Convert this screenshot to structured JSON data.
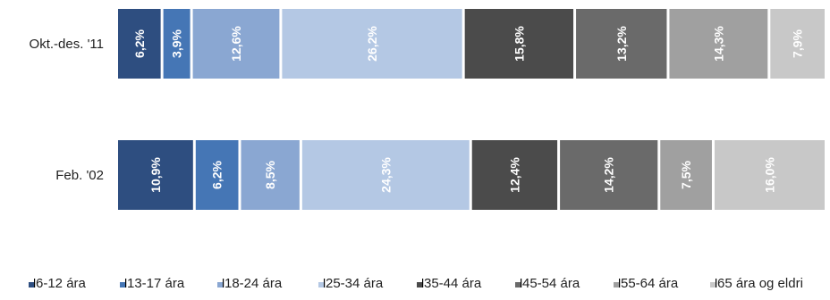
{
  "chart_data": {
    "type": "bar",
    "orientation": "horizontal",
    "stacked": true,
    "normalized": true,
    "categories": [
      "Okt.-des. '11",
      "Feb. '02"
    ],
    "series": [
      {
        "name": "6-12 ára",
        "values": [
          6.2,
          10.9
        ],
        "labels": [
          "6,2%",
          "10,9%"
        ],
        "color": "#2e4e80"
      },
      {
        "name": "13-17 ára",
        "values": [
          3.9,
          6.2
        ],
        "labels": [
          "3,9%",
          "6,2%"
        ],
        "color": "#4576b5"
      },
      {
        "name": "18-24 ára",
        "values": [
          12.6,
          8.5
        ],
        "labels": [
          "12,6%",
          "8,5%"
        ],
        "color": "#8aa7d2"
      },
      {
        "name": "25-34 ára",
        "values": [
          26.2,
          24.3
        ],
        "labels": [
          "26,2%",
          "24,3%"
        ],
        "color": "#b4c8e4"
      },
      {
        "name": "35-44 ára",
        "values": [
          15.8,
          12.4
        ],
        "labels": [
          "15,8%",
          "12,4%"
        ],
        "color": "#4b4b4b"
      },
      {
        "name": "45-54 ára",
        "values": [
          13.2,
          14.2
        ],
        "labels": [
          "13,2%",
          "14,2%"
        ],
        "color": "#6a6a6a"
      },
      {
        "name": "55-64 ára",
        "values": [
          14.3,
          7.5
        ],
        "labels": [
          "14,3%",
          "7,5%"
        ],
        "color": "#a0a0a0"
      },
      {
        "name": "65 ára og eldri",
        "values": [
          7.9,
          16.0
        ],
        "labels": [
          "7,9%",
          "16,0%"
        ],
        "color": "#c8c8c8"
      }
    ],
    "legend_position": "bottom",
    "grid": false
  }
}
